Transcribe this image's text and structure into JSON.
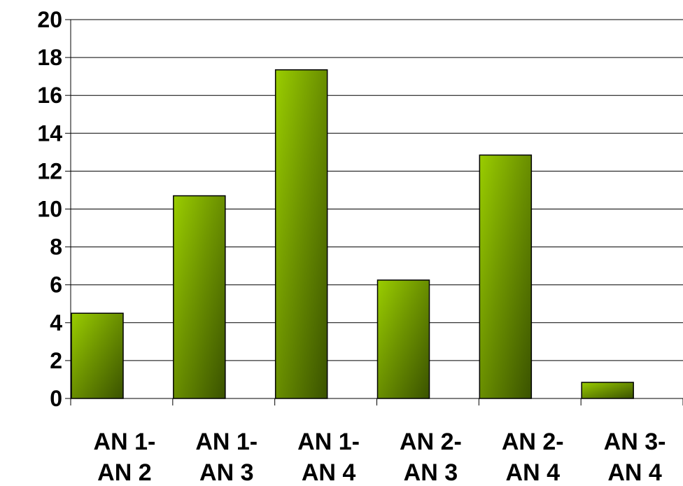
{
  "chart_data": {
    "type": "bar",
    "categories": [
      [
        "AN 1-",
        "AN 2"
      ],
      [
        "AN 1-",
        "AN 3"
      ],
      [
        "AN 1-",
        "AN 4"
      ],
      [
        "AN 2-",
        "AN 3"
      ],
      [
        "AN 2-",
        "AN 4"
      ],
      [
        "AN 3-",
        "AN 4"
      ]
    ],
    "values": [
      4.5,
      10.7,
      17.35,
      6.25,
      12.85,
      0.85
    ],
    "ylim": [
      0,
      20
    ],
    "yticks": [
      "0",
      "2",
      "4",
      "6",
      "8",
      "10",
      "12",
      "14",
      "16",
      "18",
      "20"
    ],
    "grid": true,
    "legend": "none",
    "colors": {
      "bar_light": "#9acd00",
      "bar_dark": "#3a5200",
      "grid": "#000000"
    }
  }
}
